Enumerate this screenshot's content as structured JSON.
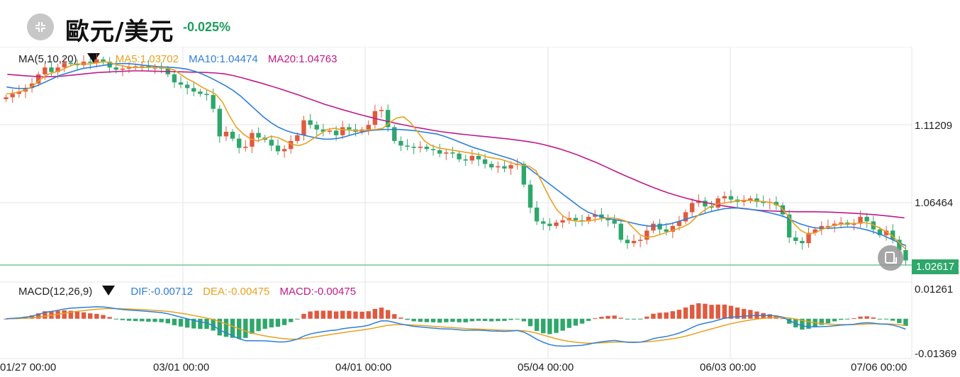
{
  "header": {
    "title": "歐元/美元",
    "change": "-0.025%",
    "icon": "menu-grid-icon"
  },
  "main_legend": {
    "indicator": "MA(5,10,20)",
    "items": [
      {
        "label": "MA5:1.03702",
        "color": "#e8a120"
      },
      {
        "label": "MA10:1.04474",
        "color": "#2d7fd8"
      },
      {
        "label": "MA20:1.04763",
        "color": "#c01a8a"
      }
    ]
  },
  "macd_legend": {
    "indicator": "MACD(12,26,9)",
    "items": [
      {
        "label": "DIF:-0.00712",
        "color": "#2d7fd8"
      },
      {
        "label": "DEA:-0.00475",
        "color": "#e8a120"
      },
      {
        "label": "MACD:-0.00475",
        "color": "#c01a8a"
      }
    ]
  },
  "y_axis": {
    "price_ticks": [
      "1.11209",
      "1.06464"
    ],
    "current_price": "1.02617",
    "macd_ticks": [
      "0.01261",
      "-0.01369"
    ]
  },
  "x_axis": {
    "ticks": [
      "01/27 00:00",
      "03/01 00:00",
      "04/01 00:00",
      "05/04 00:00",
      "06/03 00:00",
      "07/06 00:00"
    ]
  },
  "colors": {
    "up": "#e05a3f",
    "down": "#2ea76b",
    "ma5": "#e8a120",
    "ma10": "#2d7fd8",
    "ma20": "#c01a8a"
  },
  "chart_data": {
    "type": "candlestick",
    "x_ticks": [
      "01/27 00:00",
      "03/01 00:00",
      "04/01 00:00",
      "05/04 00:00",
      "06/03 00:00",
      "07/06 00:00"
    ],
    "close": [
      1.12,
      1.1215,
      1.1225,
      1.124,
      1.126,
      1.13,
      1.133,
      1.131,
      1.133,
      1.135,
      1.1345,
      1.134,
      1.1355,
      1.135,
      1.1365,
      1.1355,
      1.133,
      1.132,
      1.1325,
      1.133,
      1.1335,
      1.1335,
      1.133,
      1.133,
      1.1325,
      1.13,
      1.1265,
      1.1255,
      1.124,
      1.1225,
      1.1215,
      1.121,
      1.115,
      1.103,
      1.105,
      1.102,
      1.098,
      1.0985,
      1.1045,
      1.1025,
      1.1015,
      1.099,
      1.0965,
      1.0975,
      1.101,
      1.1035,
      1.11,
      1.108,
      1.106,
      1.105,
      1.1055,
      1.1035,
      1.107,
      1.106,
      1.105,
      1.106,
      1.108,
      1.114,
      1.1145,
      1.107,
      1.101,
      1.099,
      1.0985,
      1.098,
      1.0985,
      1.0975,
      1.097,
      1.0955,
      1.096,
      1.0955,
      1.093,
      1.0925,
      1.0945,
      1.093,
      1.091,
      1.0895,
      1.09,
      1.089,
      1.0905,
      1.091,
      1.082,
      1.072,
      1.066,
      1.065,
      1.064,
      1.0655,
      1.0665,
      1.0675,
      1.0665,
      1.066,
      1.068,
      1.069,
      1.0675,
      1.0665,
      1.065,
      1.058,
      1.0565,
      1.0575,
      1.058,
      1.062,
      1.065,
      1.0625,
      1.0615,
      1.064,
      1.066,
      1.07,
      1.074,
      1.075,
      1.0725,
      1.072,
      1.076,
      1.077,
      1.0755,
      1.0745,
      1.075,
      1.076,
      1.0745,
      1.074,
      1.0745,
      1.073,
      1.069,
      1.059,
      1.0575,
      1.0565,
      1.061,
      1.0625,
      1.064,
      1.064,
      1.065,
      1.0655,
      1.0645,
      1.065,
      1.068,
      1.066,
      1.0625,
      1.06,
      1.062,
      1.058,
      1.0535,
      1.049
    ],
    "ma5": [
      1.1215,
      1.1218,
      1.1225,
      1.1235,
      1.1255,
      1.128,
      1.13,
      1.131,
      1.132,
      1.1335,
      1.1345,
      1.1345,
      1.1345,
      1.135,
      1.1355,
      1.135,
      1.134,
      1.1335,
      1.133,
      1.133,
      1.133,
      1.133,
      1.133,
      1.1328,
      1.132,
      1.13,
      1.128,
      1.1265,
      1.1245,
      1.123,
      1.1215,
      1.118,
      1.112,
      1.107,
      1.104,
      1.102,
      1.101,
      1.102,
      1.103,
      1.1025,
      1.101,
      1.0995,
      1.099,
      1.1,
      1.102,
      1.104,
      1.106,
      1.1065,
      1.106,
      1.1058,
      1.1055,
      1.1055,
      1.1058,
      1.106,
      1.1065,
      1.109,
      1.111,
      1.1115,
      1.109,
      1.105,
      1.101,
      1.099,
      1.098,
      1.0975,
      1.097,
      1.0965,
      1.096,
      1.0955,
      1.095,
      1.094,
      1.0935,
      1.093,
      1.092,
      1.091,
      1.0905,
      1.09,
      1.088,
      1.082,
      1.076,
      1.071,
      1.068,
      1.0665,
      1.066,
      1.0662,
      1.0665,
      1.067,
      1.0675,
      1.0675,
      1.067,
      1.066,
      1.063,
      1.06,
      1.059,
      1.0595,
      1.0605,
      1.0615,
      1.0625,
      1.0635,
      1.065,
      1.068,
      1.0705,
      1.0725,
      1.0735,
      1.074,
      1.0745,
      1.075,
      1.0752,
      1.075,
      1.0748,
      1.0745,
      1.074,
      1.0725,
      1.069,
      1.065,
      1.062,
      1.0605,
      1.061,
      1.0625,
      1.0635,
      1.0645,
      1.0648,
      1.065,
      1.0652,
      1.0655,
      1.065,
      1.0635,
      1.062,
      1.06,
      1.057,
      1.054
    ],
    "ma10": [
      1.1245,
      1.124,
      1.1238,
      1.124,
      1.125,
      1.1265,
      1.128,
      1.1295,
      1.1305,
      1.1315,
      1.1325,
      1.133,
      1.1335,
      1.134,
      1.1345,
      1.1347,
      1.1347,
      1.1344,
      1.134,
      1.1337,
      1.1334,
      1.1332,
      1.133,
      1.1327,
      1.1322,
      1.1313,
      1.13,
      1.1285,
      1.1268,
      1.125,
      1.123,
      1.1205,
      1.1175,
      1.1145,
      1.1115,
      1.109,
      1.107,
      1.1055,
      1.1045,
      1.1038,
      1.103,
      1.1023,
      1.1018,
      1.1018,
      1.1022,
      1.103,
      1.104,
      1.1048,
      1.1055,
      1.1058,
      1.106,
      1.106,
      1.106,
      1.1058,
      1.1055,
      1.105,
      1.1045,
      1.104,
      1.103,
      1.1018,
      1.1005,
      1.0992,
      1.098,
      1.097,
      1.096,
      1.095,
      1.094,
      1.093,
      1.0915,
      1.0895,
      1.087,
      1.0845,
      1.082,
      1.0795,
      1.077,
      1.0745,
      1.072,
      1.07,
      1.0688,
      1.0678,
      1.067,
      1.0665,
      1.066,
      1.0652,
      1.0645,
      1.064,
      1.064,
      1.0645,
      1.065,
      1.066,
      1.067,
      1.068,
      1.069,
      1.07,
      1.0708,
      1.0715,
      1.0718,
      1.0718,
      1.0715,
      1.071,
      1.0705,
      1.0698,
      1.069,
      1.068,
      1.0665,
      1.065,
      1.064,
      1.0632,
      1.063,
      1.063,
      1.0632,
      1.0635,
      1.0635,
      1.063,
      1.0622,
      1.0612,
      1.06,
      1.0585,
      1.057,
      1.0555
    ],
    "ma20": [
      1.13,
      1.1297,
      1.1294,
      1.1291,
      1.1289,
      1.129,
      1.1292,
      1.1296,
      1.13,
      1.1304,
      1.1308,
      1.131,
      1.1312,
      1.1314,
      1.1315,
      1.1315,
      1.1314,
      1.1313,
      1.1312,
      1.1311,
      1.131,
      1.1309,
      1.1308,
      1.1306,
      1.1302,
      1.1294,
      1.1284,
      1.1273,
      1.1262,
      1.125,
      1.1238,
      1.1225,
      1.1212,
      1.1198,
      1.1184,
      1.117,
      1.1158,
      1.1146,
      1.1135,
      1.1124,
      1.1114,
      1.1104,
      1.1095,
      1.1086,
      1.1078,
      1.107,
      1.1063,
      1.1056,
      1.105,
      1.1045,
      1.104,
      1.1036,
      1.1032,
      1.1028,
      1.1024,
      1.102,
      1.1015,
      1.101,
      1.1004,
      1.0996,
      1.0986,
      1.0975,
      1.0962,
      1.0948,
      1.0932,
      1.0916,
      1.0898,
      1.088,
      1.0862,
      1.0845,
      1.0828,
      1.0812,
      1.0797,
      1.0783,
      1.0771,
      1.076,
      1.075,
      1.0742,
      1.0735,
      1.0728,
      1.0722,
      1.0716,
      1.0712,
      1.0708,
      1.0706,
      1.0704,
      1.0703,
      1.0702,
      1.0702,
      1.0702,
      1.0701,
      1.07,
      1.0698,
      1.0696,
      1.0694,
      1.0691,
      1.0688,
      1.0684,
      1.068,
      1.0675
    ]
  }
}
